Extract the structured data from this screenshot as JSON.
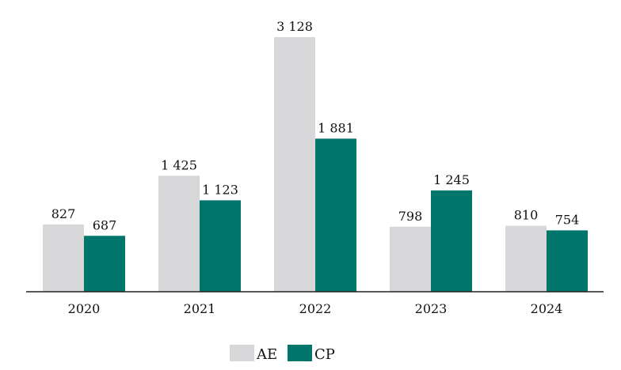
{
  "chart_data": {
    "type": "bar",
    "categories": [
      "2020",
      "2021",
      "2022",
      "2023",
      "2024"
    ],
    "series": [
      {
        "name": "AE",
        "values": [
          827,
          1425,
          3128,
          798,
          810
        ],
        "labels": [
          "827",
          "1 425",
          "3 128",
          "798",
          "810"
        ]
      },
      {
        "name": "CP",
        "values": [
          687,
          1123,
          1881,
          1245,
          754
        ],
        "labels": [
          "687",
          "1 123",
          "1 881",
          "1 245",
          "754"
        ]
      }
    ],
    "title": "",
    "xlabel": "",
    "ylabel": "",
    "ylim": [
      0,
      3128
    ],
    "grid": false,
    "legend": "bottom-center",
    "colors": {
      "AE": "#d7d7d9",
      "CP": "#00756c",
      "axis": "#222222",
      "text": "#111111"
    }
  }
}
